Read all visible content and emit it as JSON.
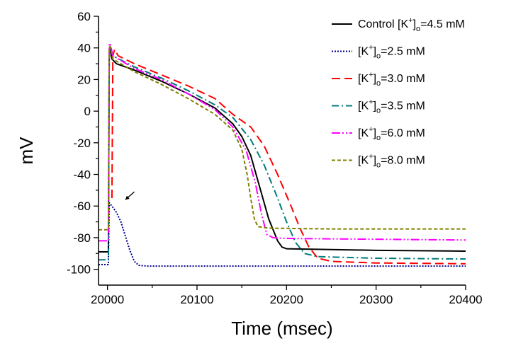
{
  "chart_data": {
    "type": "line",
    "title": "",
    "xlabel": "Time (msec)",
    "ylabel": "mV",
    "xlim": [
      19990,
      20400
    ],
    "ylim": [
      -110,
      60
    ],
    "xticks": [
      20000,
      20100,
      20200,
      20300,
      20400
    ],
    "yticks": [
      -100,
      -80,
      -60,
      -40,
      -20,
      0,
      20,
      40,
      60
    ],
    "grid": false,
    "legend_position": "top-right",
    "series": [
      {
        "name": "Control [K+]o=4.5 mM",
        "legend_prefix": "Control [K",
        "legend_sup": "+",
        "legend_mid": "]",
        "legend_sub": "o",
        "legend_suffix": "=4.5 mM",
        "color": "#000000",
        "dash": "",
        "width": 2,
        "points": [
          [
            19990,
            -89
          ],
          [
            20000,
            -89
          ],
          [
            20001,
            -89
          ],
          [
            20002,
            38
          ],
          [
            20003,
            39
          ],
          [
            20005,
            33
          ],
          [
            20010,
            30
          ],
          [
            20030,
            26
          ],
          [
            20060,
            19
          ],
          [
            20090,
            11
          ],
          [
            20120,
            2
          ],
          [
            20140,
            -8
          ],
          [
            20150,
            -16
          ],
          [
            20160,
            -28
          ],
          [
            20170,
            -48
          ],
          [
            20180,
            -68
          ],
          [
            20190,
            -82
          ],
          [
            20195,
            -86
          ],
          [
            20200,
            -87
          ],
          [
            20250,
            -87.5
          ],
          [
            20300,
            -88
          ],
          [
            20400,
            -88.5
          ]
        ]
      },
      {
        "name": "[K+]o=2.5 mM",
        "legend_prefix": "[K",
        "legend_sup": "+",
        "legend_mid": "]",
        "legend_sub": "o",
        "legend_suffix": "=2.5 mM",
        "color": "#00008b",
        "dash": "2,2",
        "width": 2,
        "points": [
          [
            19990,
            -97
          ],
          [
            20000,
            -97
          ],
          [
            20001,
            -97
          ],
          [
            20002,
            -58
          ],
          [
            20005,
            -60
          ],
          [
            20010,
            -64
          ],
          [
            20015,
            -70
          ],
          [
            20020,
            -79
          ],
          [
            20025,
            -88
          ],
          [
            20030,
            -95
          ],
          [
            20035,
            -97.5
          ],
          [
            20045,
            -98
          ],
          [
            20400,
            -98
          ]
        ]
      },
      {
        "name": "[K+]o=3.0 mM",
        "legend_prefix": "[K",
        "legend_sup": "+",
        "legend_mid": "]",
        "legend_sub": "o",
        "legend_suffix": "=3.0 mM",
        "color": "#ff0000",
        "dash": "12,6",
        "width": 2,
        "points": [
          [
            20005,
            -55
          ],
          [
            20006,
            35
          ],
          [
            20008,
            39
          ],
          [
            20012,
            35
          ],
          [
            20030,
            30
          ],
          [
            20060,
            23
          ],
          [
            20090,
            16
          ],
          [
            20120,
            8
          ],
          [
            20140,
            -2
          ],
          [
            20160,
            -10
          ],
          [
            20175,
            -22
          ],
          [
            20190,
            -40
          ],
          [
            20205,
            -60
          ],
          [
            20215,
            -74
          ],
          [
            20225,
            -86
          ],
          [
            20235,
            -93
          ],
          [
            20250,
            -95
          ],
          [
            20300,
            -96
          ],
          [
            20400,
            -96.5
          ]
        ]
      },
      {
        "name": "[K+]o=3.5 mM",
        "legend_prefix": "[K",
        "legend_sup": "+",
        "legend_mid": "]",
        "legend_sub": "o",
        "legend_suffix": "=3.5 mM",
        "color": "#007b7b",
        "dash": "10,4,2,4",
        "width": 2,
        "points": [
          [
            19990,
            -94
          ],
          [
            20000,
            -94
          ],
          [
            20001,
            -94
          ],
          [
            20002,
            40
          ],
          [
            20003,
            41
          ],
          [
            20006,
            35
          ],
          [
            20030,
            28
          ],
          [
            20060,
            21
          ],
          [
            20090,
            13
          ],
          [
            20120,
            4
          ],
          [
            20140,
            -4
          ],
          [
            20160,
            -18
          ],
          [
            20175,
            -34
          ],
          [
            20190,
            -55
          ],
          [
            20200,
            -70
          ],
          [
            20210,
            -83
          ],
          [
            20220,
            -90
          ],
          [
            20235,
            -92
          ],
          [
            20300,
            -93
          ],
          [
            20400,
            -93.5
          ]
        ]
      },
      {
        "name": "[K+]o=6.0 mM",
        "legend_prefix": "[K",
        "legend_sup": "+",
        "legend_mid": "]",
        "legend_sub": "o",
        "legend_suffix": "=6.0 mM",
        "color": "#ff00ff",
        "dash": "12,3,2,3,2,3",
        "width": 2,
        "points": [
          [
            19990,
            -82
          ],
          [
            20000,
            -82
          ],
          [
            20001,
            -82
          ],
          [
            20002,
            42
          ],
          [
            20003,
            43
          ],
          [
            20006,
            35
          ],
          [
            20030,
            27
          ],
          [
            20060,
            20
          ],
          [
            20090,
            11
          ],
          [
            20120,
            1
          ],
          [
            20140,
            -10
          ],
          [
            20155,
            -25
          ],
          [
            20165,
            -45
          ],
          [
            20172,
            -65
          ],
          [
            20178,
            -78
          ],
          [
            20185,
            -80
          ],
          [
            20200,
            -80.5
          ],
          [
            20300,
            -81
          ],
          [
            20400,
            -81.5
          ]
        ]
      },
      {
        "name": "[K+]o=8.0 mM",
        "legend_prefix": "[K",
        "legend_sup": "+",
        "legend_mid": "]",
        "legend_sub": "o",
        "legend_suffix": "=8.0 mM",
        "color": "#808000",
        "dash": "5,3",
        "width": 2,
        "points": [
          [
            19990,
            -75
          ],
          [
            20000,
            -75
          ],
          [
            20001,
            -75
          ],
          [
            20002,
            40
          ],
          [
            20003,
            41
          ],
          [
            20006,
            33
          ],
          [
            20030,
            25
          ],
          [
            20060,
            17
          ],
          [
            20090,
            8
          ],
          [
            20120,
            -2
          ],
          [
            20140,
            -12
          ],
          [
            20150,
            -24
          ],
          [
            20156,
            -40
          ],
          [
            20160,
            -55
          ],
          [
            20164,
            -68
          ],
          [
            20168,
            -73
          ],
          [
            20180,
            -74
          ],
          [
            20250,
            -74.5
          ],
          [
            20400,
            -74.5
          ]
        ]
      }
    ],
    "annotations": [
      {
        "type": "arrow",
        "from": [
          20030,
          -51
        ],
        "to": [
          20020,
          -56
        ]
      }
    ]
  }
}
